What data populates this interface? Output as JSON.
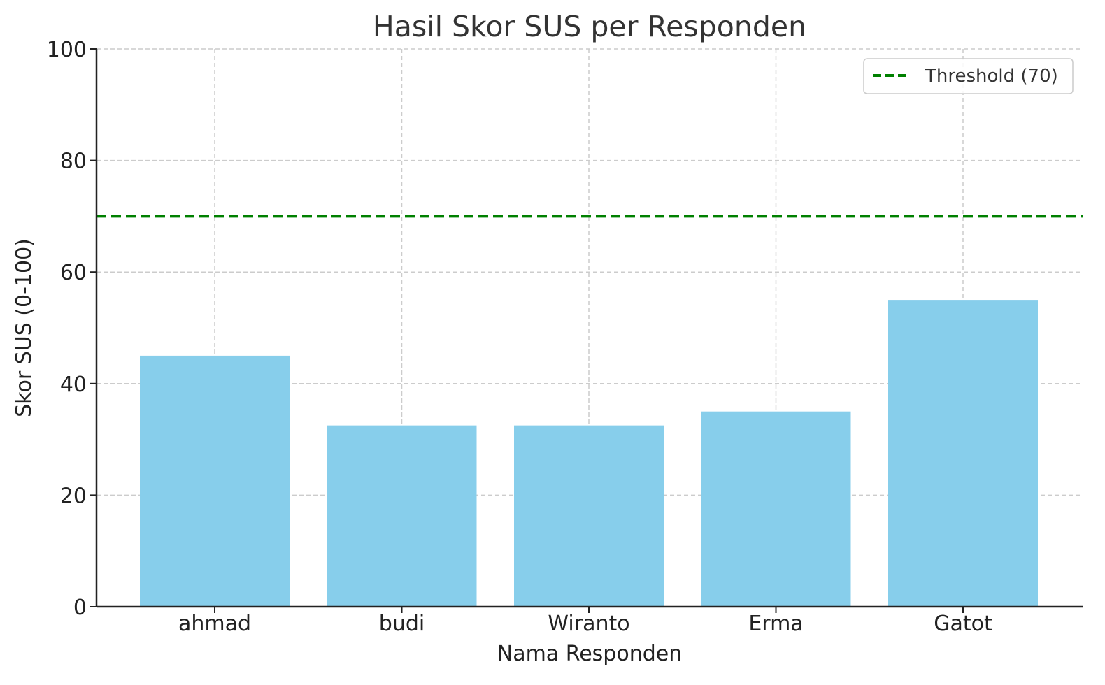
{
  "chart_data": {
    "type": "bar",
    "title": "Hasil Skor SUS per Responden",
    "xlabel": "Nama Responden",
    "ylabel": "Skor SUS (0-100)",
    "categories": [
      "ahmad",
      "budi",
      "Wiranto",
      "Erma",
      "Gatot"
    ],
    "values": [
      45,
      32.5,
      32.5,
      35,
      55
    ],
    "ylim": [
      0,
      100
    ],
    "yticks": [
      0,
      20,
      40,
      60,
      80,
      100
    ],
    "grid": true,
    "bar_color": "#87CEEB",
    "threshold": {
      "value": 70,
      "label": "Threshold (70)",
      "color": "#008000",
      "style": "dashed"
    },
    "legend": {
      "placement": "top-right",
      "entries": [
        "Threshold (70)"
      ]
    }
  }
}
